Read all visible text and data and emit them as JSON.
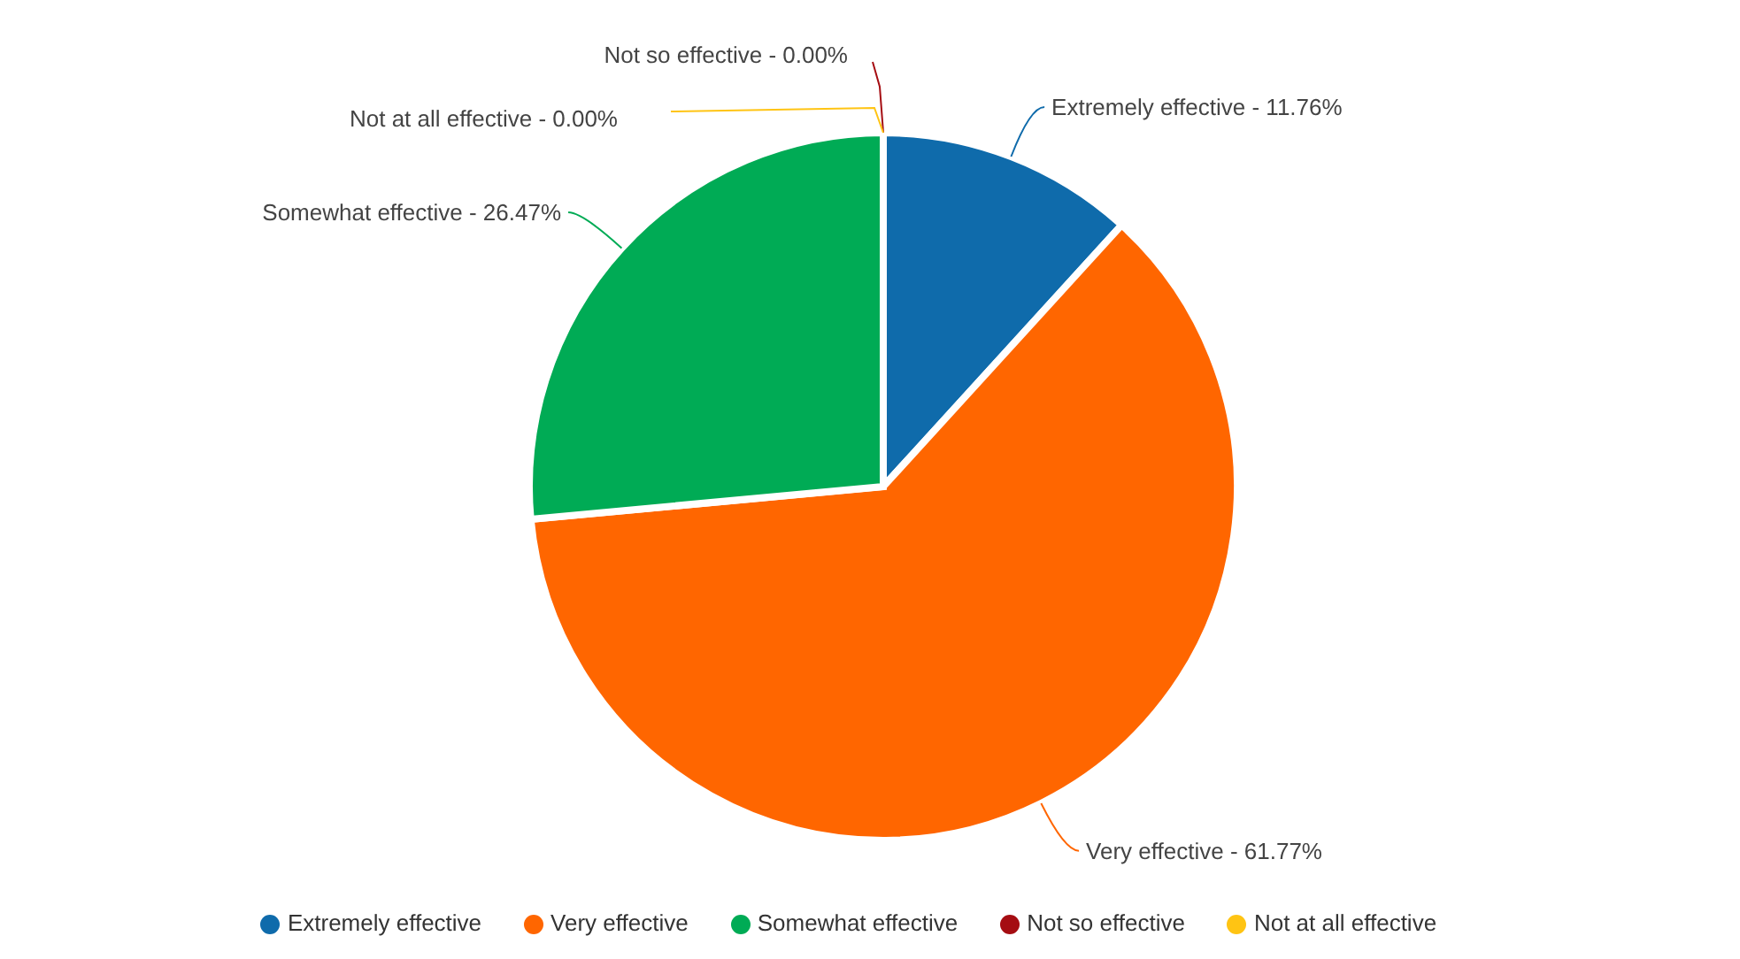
{
  "chart_data": {
    "type": "pie",
    "categories": [
      "Extremely effective",
      "Very effective",
      "Somewhat effective",
      "Not so effective",
      "Not at all effective"
    ],
    "values": [
      11.76,
      61.77,
      26.47,
      0,
      0
    ],
    "colors": [
      "#0f6bab",
      "#ff6600",
      "#00ab55",
      "#a50d12",
      "#ffc413"
    ],
    "value_labels": [
      "11.76%",
      "61.77%",
      "26.47%",
      "0.00%",
      "0.00%"
    ],
    "annotations": [
      "-"
    ],
    "legend": "bottom"
  }
}
